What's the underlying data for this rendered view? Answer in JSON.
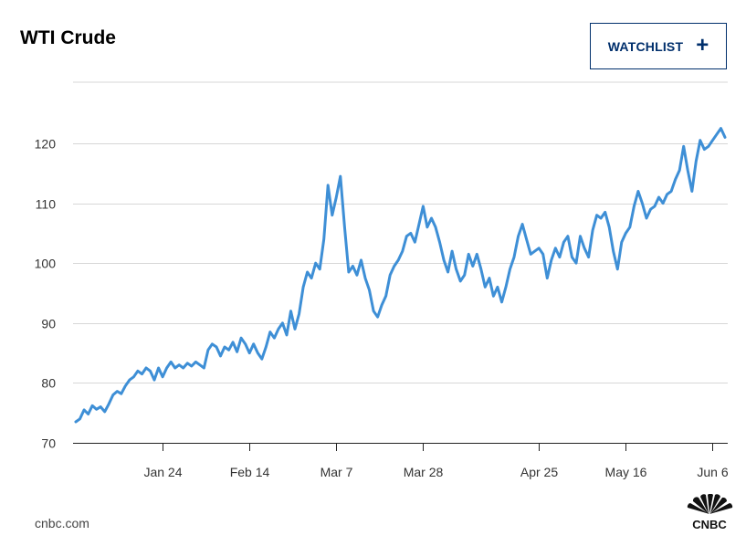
{
  "header": {
    "title": "WTI Crude",
    "watchlist_label": "WATCHLIST",
    "watchlist_icon": "plus-icon"
  },
  "footer": {
    "source": "cnbc.com",
    "logo_text": "CNBC"
  },
  "colors": {
    "line": "#3e8fd6",
    "grid": "#d7d7d7",
    "axis": "#333333",
    "brand": "#002f6c"
  },
  "chart_data": {
    "type": "line",
    "title": "WTI Crude",
    "xlabel": "",
    "ylabel": "",
    "ylim": [
      70,
      130
    ],
    "yticks": [
      70,
      80,
      90,
      100,
      110,
      120
    ],
    "xlim": [
      0,
      157
    ],
    "xticks": [
      {
        "day": 21,
        "label": "Jan 24"
      },
      {
        "day": 42,
        "label": "Feb 14"
      },
      {
        "day": 63,
        "label": "Mar 7"
      },
      {
        "day": 84,
        "label": "Mar 28"
      },
      {
        "day": 112,
        "label": "Apr 25"
      },
      {
        "day": 133,
        "label": "May 16"
      },
      {
        "day": 154,
        "label": "Jun 6"
      }
    ],
    "grid": true,
    "series": [
      {
        "name": "WTI Crude",
        "x": [
          0,
          1,
          2,
          3,
          4,
          5,
          6,
          7,
          8,
          9,
          10,
          11,
          12,
          13,
          14,
          15,
          16,
          17,
          18,
          19,
          20,
          21,
          22,
          23,
          24,
          25,
          26,
          27,
          28,
          29,
          30,
          31,
          32,
          33,
          34,
          35,
          36,
          37,
          38,
          39,
          40,
          41,
          42,
          43,
          44,
          45,
          46,
          47,
          48,
          49,
          50,
          51,
          52,
          53,
          54,
          55,
          56,
          57,
          58,
          59,
          60,
          61,
          62,
          63,
          64,
          65,
          66,
          67,
          68,
          69,
          70,
          71,
          72,
          73,
          74,
          75,
          76,
          77,
          78,
          79,
          80,
          81,
          82,
          83,
          84,
          85,
          86,
          87,
          88,
          89,
          90,
          91,
          92,
          93,
          94,
          95,
          96,
          97,
          98,
          99,
          100,
          101,
          102,
          103,
          104,
          105,
          106,
          107,
          108,
          109,
          110,
          111,
          112,
          113,
          114,
          115,
          116,
          117,
          118,
          119,
          120,
          121,
          122,
          123,
          124,
          125,
          126,
          127,
          128,
          129,
          130,
          131,
          132,
          133,
          134,
          135,
          136,
          137,
          138,
          139,
          140,
          141,
          142,
          143,
          144,
          145,
          146,
          147,
          148,
          149,
          150,
          151,
          152,
          153,
          154,
          155,
          156,
          157
        ],
        "values": [
          73.5,
          74.0,
          75.5,
          74.8,
          76.2,
          75.6,
          76.0,
          75.2,
          76.5,
          78.0,
          78.6,
          78.2,
          79.5,
          80.5,
          81.0,
          82.0,
          81.5,
          82.5,
          82.0,
          80.5,
          82.5,
          81.0,
          82.5,
          83.5,
          82.5,
          83.0,
          82.5,
          83.3,
          82.8,
          83.5,
          83.0,
          82.5,
          85.5,
          86.5,
          86.0,
          84.5,
          86.0,
          85.5,
          86.8,
          85.2,
          87.5,
          86.5,
          85.0,
          86.5,
          85.0,
          84.0,
          86.0,
          88.5,
          87.5,
          89.0,
          90.0,
          88.0,
          92.0,
          89.0,
          91.5,
          96.0,
          98.5,
          97.5,
          100.0,
          99.0,
          104.0,
          113.0,
          108.0,
          111.0,
          114.5,
          106.0,
          98.5,
          99.5,
          98.0,
          100.5,
          97.5,
          95.5,
          92.0,
          91.0,
          93.0,
          94.5,
          98.0,
          99.5,
          100.5,
          102.0,
          104.5,
          105.0,
          103.5,
          106.5,
          109.5,
          106.0,
          107.5,
          106.0,
          103.5,
          100.5,
          98.5,
          102.0,
          99.0,
          97.0,
          98.0,
          101.5,
          99.5,
          101.5,
          99.0,
          96.0,
          97.5,
          94.5,
          96.0,
          93.5,
          96.0,
          99.0,
          101.0,
          104.5,
          106.5,
          104.0,
          101.5,
          102.0,
          102.5,
          101.5,
          97.5,
          100.5,
          102.5,
          101.0,
          103.5,
          104.5,
          101.0,
          100.0,
          104.5,
          102.5,
          101.0,
          105.5,
          108.0,
          107.5,
          108.5,
          106.0,
          102.0,
          99.0,
          103.5,
          105.0,
          106.0,
          109.5,
          112.0,
          110.0,
          107.5,
          109.0,
          109.5,
          111.0,
          110.0,
          111.5,
          112.0,
          114.0,
          115.5,
          119.5,
          115.5,
          112.0,
          117.0,
          120.5,
          119.0,
          119.5,
          120.5,
          121.5,
          122.5,
          121.0
        ]
      }
    ]
  }
}
